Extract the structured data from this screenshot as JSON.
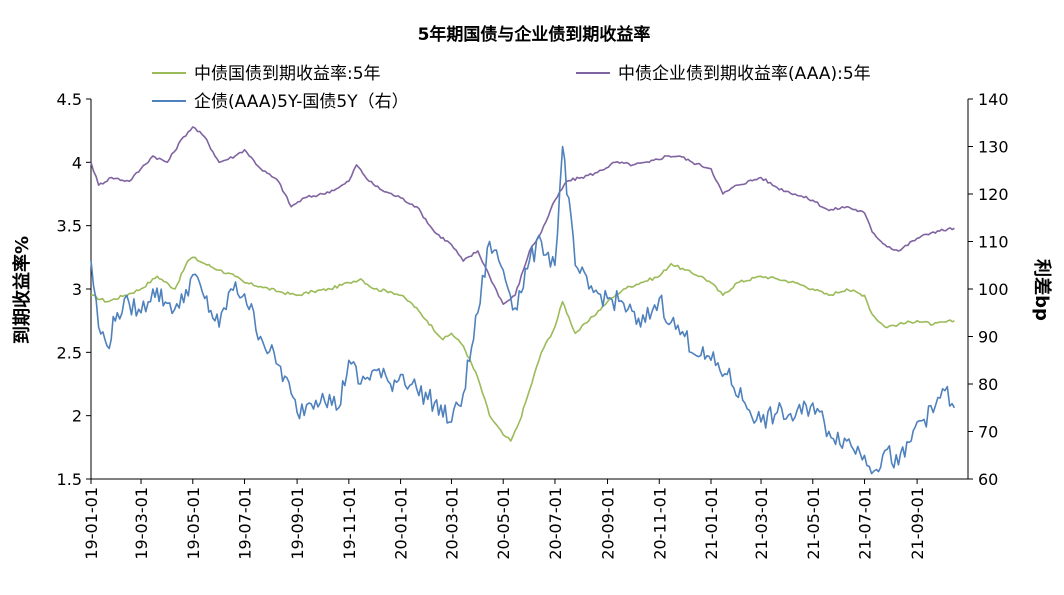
{
  "chart_data": {
    "type": "line",
    "title": "5年期国债与企业债到期收益率",
    "ylabel_left": "到期收益率%",
    "ylabel_right": "利差bp",
    "ylim_left": [
      1.5,
      4.5
    ],
    "ylim_right": [
      60,
      140
    ],
    "yticks_left": [
      "1.5",
      "2",
      "2.5",
      "3",
      "3.5",
      "4",
      "4.5"
    ],
    "yticks_right": [
      "60",
      "70",
      "80",
      "90",
      "100",
      "110",
      "120",
      "130",
      "140"
    ],
    "x_ticks": [
      "19-01-01",
      "19-03-01",
      "19-05-01",
      "19-07-01",
      "19-09-01",
      "19-11-01",
      "20-01-01",
      "20-03-01",
      "20-05-01",
      "20-07-01",
      "20-09-01",
      "20-11-01",
      "21-01-01",
      "21-03-01",
      "21-05-01",
      "21-07-01",
      "21-09-01"
    ],
    "grid": false,
    "legend_position": "top",
    "series": [
      {
        "name": "中债国债到期收益率:5年",
        "axis": "left",
        "color": "#9bbb59",
        "points": [
          [
            "19-01-01",
            2.95
          ],
          [
            "19-01-20",
            2.9
          ],
          [
            "19-02-10",
            2.95
          ],
          [
            "19-03-01",
            3.0
          ],
          [
            "19-03-20",
            3.1
          ],
          [
            "19-04-10",
            3.0
          ],
          [
            "19-04-25",
            3.22
          ],
          [
            "19-05-01",
            3.25
          ],
          [
            "19-05-15",
            3.2
          ],
          [
            "19-06-01",
            3.15
          ],
          [
            "19-06-20",
            3.1
          ],
          [
            "19-07-01",
            3.05
          ],
          [
            "19-07-20",
            3.02
          ],
          [
            "19-08-10",
            2.98
          ],
          [
            "19-09-01",
            2.95
          ],
          [
            "19-09-20",
            2.98
          ],
          [
            "19-10-10",
            3.0
          ],
          [
            "19-11-01",
            3.05
          ],
          [
            "19-11-15",
            3.08
          ],
          [
            "19-12-01",
            3.0
          ],
          [
            "19-12-20",
            2.98
          ],
          [
            "20-01-01",
            2.95
          ],
          [
            "20-01-15",
            2.88
          ],
          [
            "20-02-01",
            2.75
          ],
          [
            "20-02-20",
            2.6
          ],
          [
            "20-03-01",
            2.65
          ],
          [
            "20-03-15",
            2.55
          ],
          [
            "20-04-01",
            2.3
          ],
          [
            "20-04-15",
            2.0
          ],
          [
            "20-05-01",
            1.85
          ],
          [
            "20-05-10",
            1.8
          ],
          [
            "20-05-20",
            1.95
          ],
          [
            "20-06-01",
            2.2
          ],
          [
            "20-06-15",
            2.5
          ],
          [
            "20-07-01",
            2.7
          ],
          [
            "20-07-10",
            2.9
          ],
          [
            "20-07-25",
            2.65
          ],
          [
            "20-08-10",
            2.75
          ],
          [
            "20-09-01",
            2.9
          ],
          [
            "20-09-20",
            3.0
          ],
          [
            "20-10-10",
            3.05
          ],
          [
            "20-11-01",
            3.1
          ],
          [
            "20-11-15",
            3.2
          ],
          [
            "20-12-01",
            3.15
          ],
          [
            "20-12-20",
            3.1
          ],
          [
            "21-01-01",
            3.05
          ],
          [
            "21-01-15",
            2.95
          ],
          [
            "21-02-01",
            3.05
          ],
          [
            "21-03-01",
            3.1
          ],
          [
            "21-03-20",
            3.08
          ],
          [
            "21-04-10",
            3.05
          ],
          [
            "21-05-01",
            3.0
          ],
          [
            "21-05-20",
            2.95
          ],
          [
            "21-06-10",
            3.0
          ],
          [
            "21-07-01",
            2.95
          ],
          [
            "21-07-10",
            2.8
          ],
          [
            "21-07-25",
            2.7
          ],
          [
            "21-08-10",
            2.72
          ],
          [
            "21-09-01",
            2.75
          ],
          [
            "21-09-20",
            2.72
          ],
          [
            "21-10-15",
            2.75
          ]
        ]
      },
      {
        "name": "中债企业债到期收益率(AAA):5年",
        "axis": "left",
        "color": "#8064a2",
        "points": [
          [
            "19-01-01",
            4.0
          ],
          [
            "19-01-10",
            3.82
          ],
          [
            "19-01-25",
            3.88
          ],
          [
            "19-02-15",
            3.85
          ],
          [
            "19-03-01",
            3.95
          ],
          [
            "19-03-15",
            4.05
          ],
          [
            "19-04-01",
            4.0
          ],
          [
            "19-04-20",
            4.2
          ],
          [
            "19-05-01",
            4.28
          ],
          [
            "19-05-15",
            4.2
          ],
          [
            "19-06-01",
            4.0
          ],
          [
            "19-06-20",
            4.05
          ],
          [
            "19-07-01",
            4.1
          ],
          [
            "19-07-20",
            3.95
          ],
          [
            "19-08-10",
            3.85
          ],
          [
            "19-08-25",
            3.65
          ],
          [
            "19-09-10",
            3.72
          ],
          [
            "19-10-01",
            3.75
          ],
          [
            "19-10-20",
            3.8
          ],
          [
            "19-11-01",
            3.85
          ],
          [
            "19-11-10",
            3.98
          ],
          [
            "19-11-25",
            3.85
          ],
          [
            "19-12-10",
            3.78
          ],
          [
            "20-01-01",
            3.72
          ],
          [
            "20-01-20",
            3.65
          ],
          [
            "20-02-10",
            3.45
          ],
          [
            "20-03-01",
            3.35
          ],
          [
            "20-03-15",
            3.22
          ],
          [
            "20-04-01",
            3.3
          ],
          [
            "20-04-15",
            3.1
          ],
          [
            "20-05-01",
            2.88
          ],
          [
            "20-05-15",
            2.95
          ],
          [
            "20-06-01",
            3.3
          ],
          [
            "20-06-15",
            3.45
          ],
          [
            "20-07-01",
            3.7
          ],
          [
            "20-07-15",
            3.85
          ],
          [
            "20-08-01",
            3.88
          ],
          [
            "20-08-20",
            3.92
          ],
          [
            "20-09-10",
            4.0
          ],
          [
            "20-10-01",
            3.98
          ],
          [
            "20-10-20",
            4.0
          ],
          [
            "20-11-10",
            4.05
          ],
          [
            "20-11-25",
            4.05
          ],
          [
            "20-12-10",
            4.0
          ],
          [
            "21-01-01",
            3.95
          ],
          [
            "21-01-15",
            3.75
          ],
          [
            "21-02-01",
            3.82
          ],
          [
            "21-03-01",
            3.88
          ],
          [
            "21-03-20",
            3.8
          ],
          [
            "21-04-10",
            3.75
          ],
          [
            "21-05-01",
            3.7
          ],
          [
            "21-05-20",
            3.62
          ],
          [
            "21-06-10",
            3.65
          ],
          [
            "21-07-01",
            3.6
          ],
          [
            "21-07-10",
            3.45
          ],
          [
            "21-07-25",
            3.35
          ],
          [
            "21-08-10",
            3.3
          ],
          [
            "21-09-01",
            3.4
          ],
          [
            "21-09-20",
            3.45
          ],
          [
            "21-10-15",
            3.48
          ]
        ]
      },
      {
        "name": "企债(AAA)5Y-国债5Y（右）",
        "axis": "right",
        "color": "#4f81bd",
        "points": [
          [
            "19-01-01",
            106
          ],
          [
            "19-01-10",
            92
          ],
          [
            "19-01-20",
            88
          ],
          [
            "19-02-01",
            95
          ],
          [
            "19-02-15",
            97
          ],
          [
            "19-03-01",
            95
          ],
          [
            "19-03-15",
            100
          ],
          [
            "19-04-01",
            97
          ],
          [
            "19-04-15",
            96
          ],
          [
            "19-05-01",
            103
          ],
          [
            "19-05-15",
            98
          ],
          [
            "19-06-01",
            92
          ],
          [
            "19-06-15",
            100
          ],
          [
            "19-07-01",
            99
          ],
          [
            "19-07-20",
            90
          ],
          [
            "19-08-10",
            84
          ],
          [
            "19-08-25",
            78
          ],
          [
            "19-09-01",
            74
          ],
          [
            "19-09-15",
            76
          ],
          [
            "19-10-01",
            78
          ],
          [
            "19-10-20",
            75
          ],
          [
            "19-11-01",
            85
          ],
          [
            "19-11-15",
            80
          ],
          [
            "19-12-01",
            83
          ],
          [
            "19-12-20",
            80
          ],
          [
            "20-01-01",
            82
          ],
          [
            "20-01-20",
            79
          ],
          [
            "20-02-10",
            76
          ],
          [
            "20-03-01",
            72
          ],
          [
            "20-03-15",
            78
          ],
          [
            "20-04-01",
            95
          ],
          [
            "20-04-15",
            110
          ],
          [
            "20-05-01",
            104
          ],
          [
            "20-05-15",
            96
          ],
          [
            "20-06-01",
            106
          ],
          [
            "20-06-15",
            110
          ],
          [
            "20-07-01",
            105
          ],
          [
            "20-07-10",
            130
          ],
          [
            "20-07-25",
            105
          ],
          [
            "20-08-10",
            100
          ],
          [
            "20-09-01",
            98
          ],
          [
            "20-09-20",
            97
          ],
          [
            "20-10-10",
            92
          ],
          [
            "20-11-01",
            98
          ],
          [
            "20-11-15",
            93
          ],
          [
            "20-12-01",
            90
          ],
          [
            "20-12-20",
            86
          ],
          [
            "21-01-01",
            85
          ],
          [
            "21-01-20",
            82
          ],
          [
            "21-02-10",
            76
          ],
          [
            "21-03-01",
            72
          ],
          [
            "21-03-20",
            74
          ],
          [
            "21-04-10",
            73
          ],
          [
            "21-05-01",
            76
          ],
          [
            "21-05-20",
            70
          ],
          [
            "21-06-10",
            68
          ],
          [
            "21-07-01",
            65
          ],
          [
            "21-07-15",
            62
          ],
          [
            "21-07-25",
            66
          ],
          [
            "21-08-10",
            63
          ],
          [
            "21-08-25",
            68
          ],
          [
            "21-09-01",
            72
          ],
          [
            "21-09-20",
            74
          ],
          [
            "21-10-01",
            79
          ],
          [
            "21-10-15",
            75
          ]
        ]
      }
    ]
  }
}
